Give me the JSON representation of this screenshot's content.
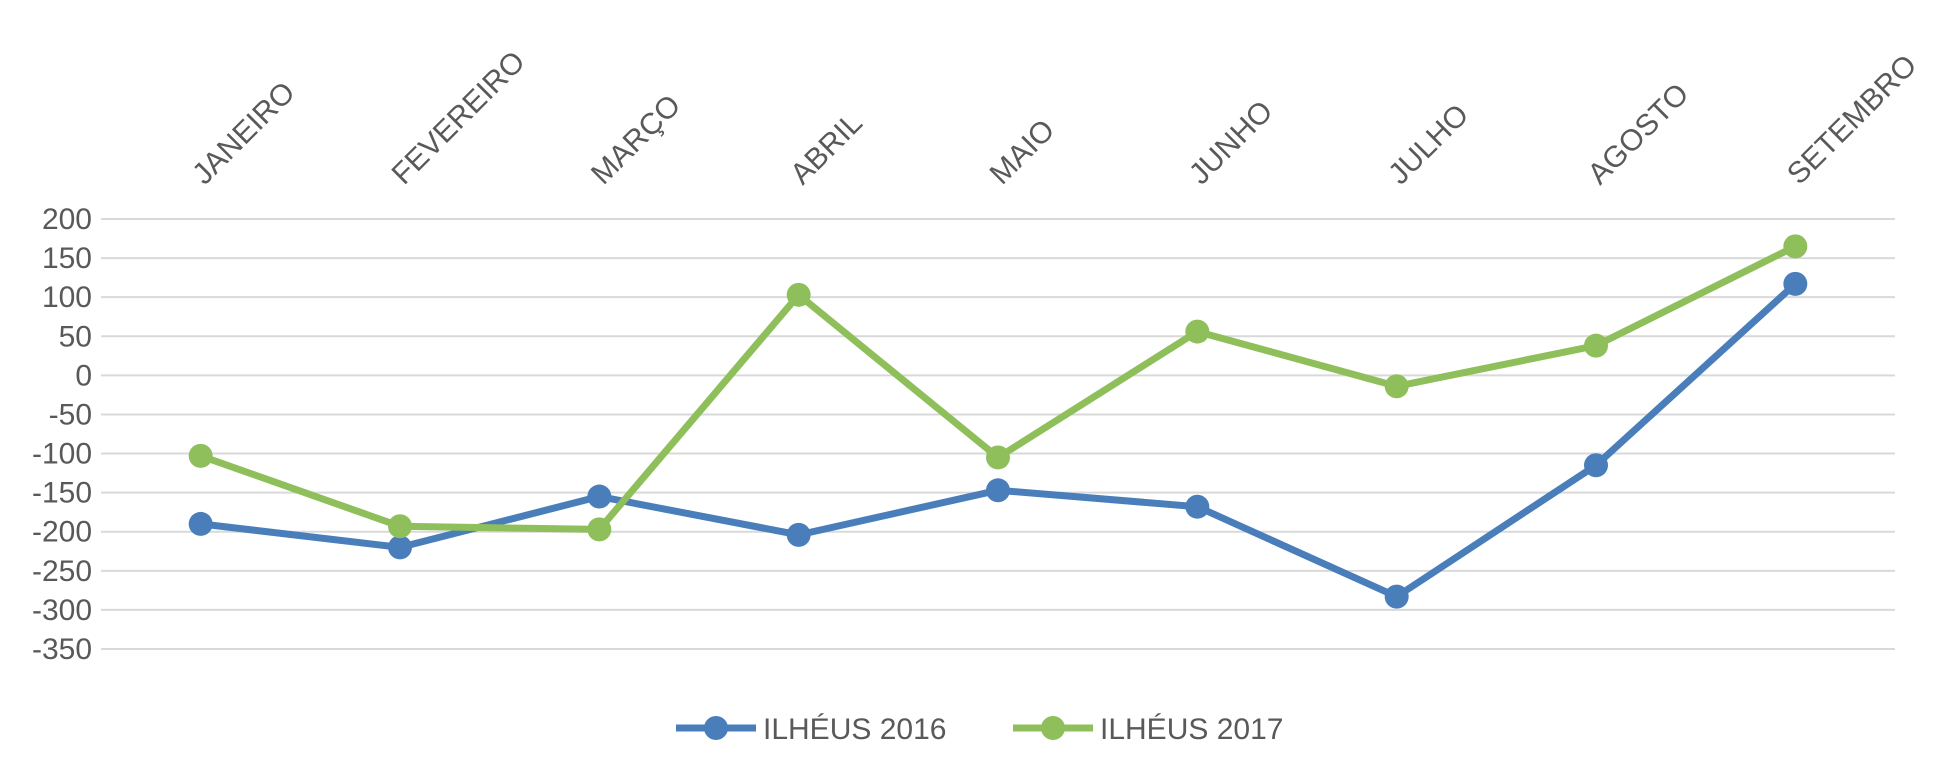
{
  "chart_data": {
    "type": "line",
    "title": "",
    "xlabel": "",
    "ylabel": "",
    "categories": [
      "JANEIRO",
      "FEVEREIRO",
      "MARÇO",
      "ABRIL",
      "MAIO",
      "JUNHO",
      "JULHO",
      "AGOSTO",
      "SETEMBRO"
    ],
    "y_ticks": [
      200,
      150,
      100,
      50,
      0,
      -50,
      -100,
      -150,
      -200,
      -250,
      -300,
      -350
    ],
    "ylim": [
      -350,
      200
    ],
    "grid": true,
    "legend_position": "bottom",
    "x_axis_position": "top",
    "series": [
      {
        "name": "ILHÉUS 2016",
        "color": "#4a7ebb",
        "values": [
          -190,
          -220,
          -155,
          -204,
          -147,
          -168,
          -283,
          -115,
          117
        ]
      },
      {
        "name": "ILHÉUS 2017",
        "color": "#8fbf5a",
        "values": [
          -103,
          -193,
          -197,
          103,
          -105,
          56,
          -14,
          38,
          165
        ]
      }
    ]
  }
}
